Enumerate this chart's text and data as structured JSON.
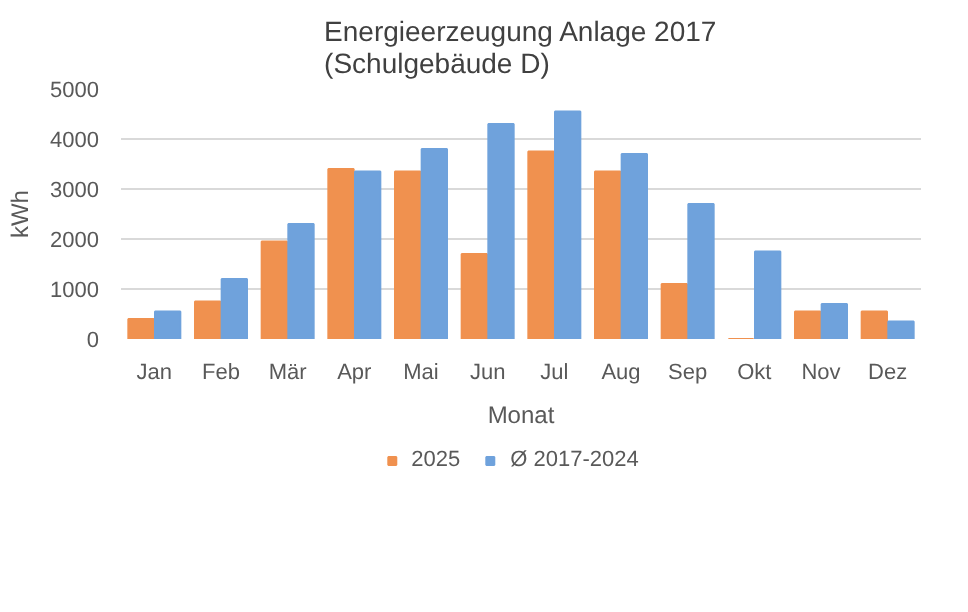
{
  "chart_data": {
    "type": "bar",
    "title": "Energieerzeugung Anlage 2017\n(Schulgebäude D)",
    "xlabel": "Monat",
    "ylabel": "kWh",
    "categories": [
      "Jan",
      "Feb",
      "Mär",
      "Apr",
      "Mai",
      "Jun",
      "Jul",
      "Aug",
      "Sep",
      "Okt",
      "Nov",
      "Dez"
    ],
    "series": [
      {
        "name": "2025",
        "color": "#f0914f",
        "values": [
          400,
          750,
          1950,
          3400,
          3350,
          1700,
          3750,
          3350,
          1100,
          0,
          550,
          550
        ]
      },
      {
        "name": "Ø 2017-2024",
        "color": "#6fa2dc",
        "values": [
          550,
          1200,
          2300,
          3350,
          3800,
          4300,
          4550,
          3700,
          2700,
          1750,
          700,
          350
        ]
      }
    ],
    "ylim": [
      0,
      5000
    ],
    "yticks": [
      0,
      1000,
      2000,
      3000,
      4000,
      5000
    ],
    "grid": "y",
    "legend": "bottom"
  }
}
